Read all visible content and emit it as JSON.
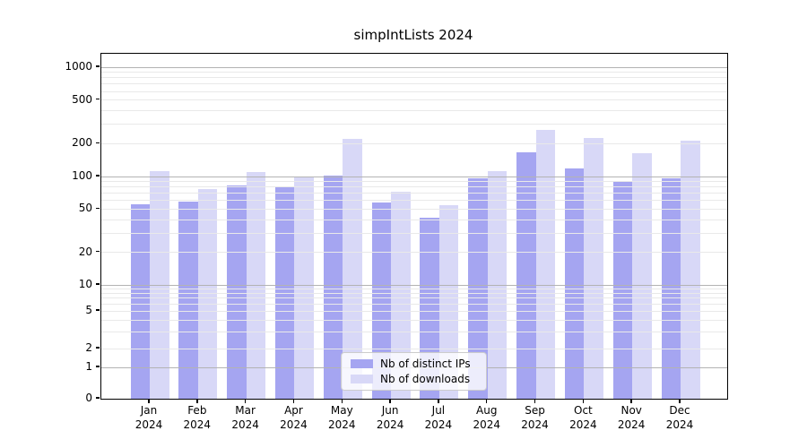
{
  "chart_data": {
    "type": "bar",
    "title": "simpIntLists 2024",
    "categories": [
      "Jan",
      "Feb",
      "Mar",
      "Apr",
      "May",
      "Jun",
      "Jul",
      "Aug",
      "Sep",
      "Oct",
      "Nov",
      "Dec"
    ],
    "category_year": "2024",
    "series": [
      {
        "name": "Nb of distinct IPs",
        "color": "#a5a5f1",
        "values": [
          55,
          59,
          82,
          79,
          102,
          58,
          42,
          97,
          167,
          119,
          90,
          97
        ]
      },
      {
        "name": "Nb of downloads",
        "color": "#d8d8f7",
        "values": [
          112,
          76,
          110,
          100,
          219,
          73,
          54,
          112,
          265,
          224,
          164,
          213
        ]
      }
    ],
    "yscale": "symlog",
    "ytick_values": [
      0,
      1,
      2,
      5,
      10,
      20,
      50,
      100,
      200,
      500,
      1000
    ],
    "ytick_labels": [
      "0",
      "1",
      "2",
      "5",
      "10",
      "20",
      "50",
      "100",
      "200",
      "500",
      "1000"
    ],
    "ylim": [
      0,
      1330
    ],
    "xlabel": "",
    "ylabel": "",
    "grid": true,
    "grid_over_bars": true,
    "legend_position": "lower center",
    "colors": {
      "grid_decade": "#b3b3b3",
      "grid_minor": "#e9e9e9",
      "axis": "#000000",
      "background": "#ffffff"
    }
  }
}
